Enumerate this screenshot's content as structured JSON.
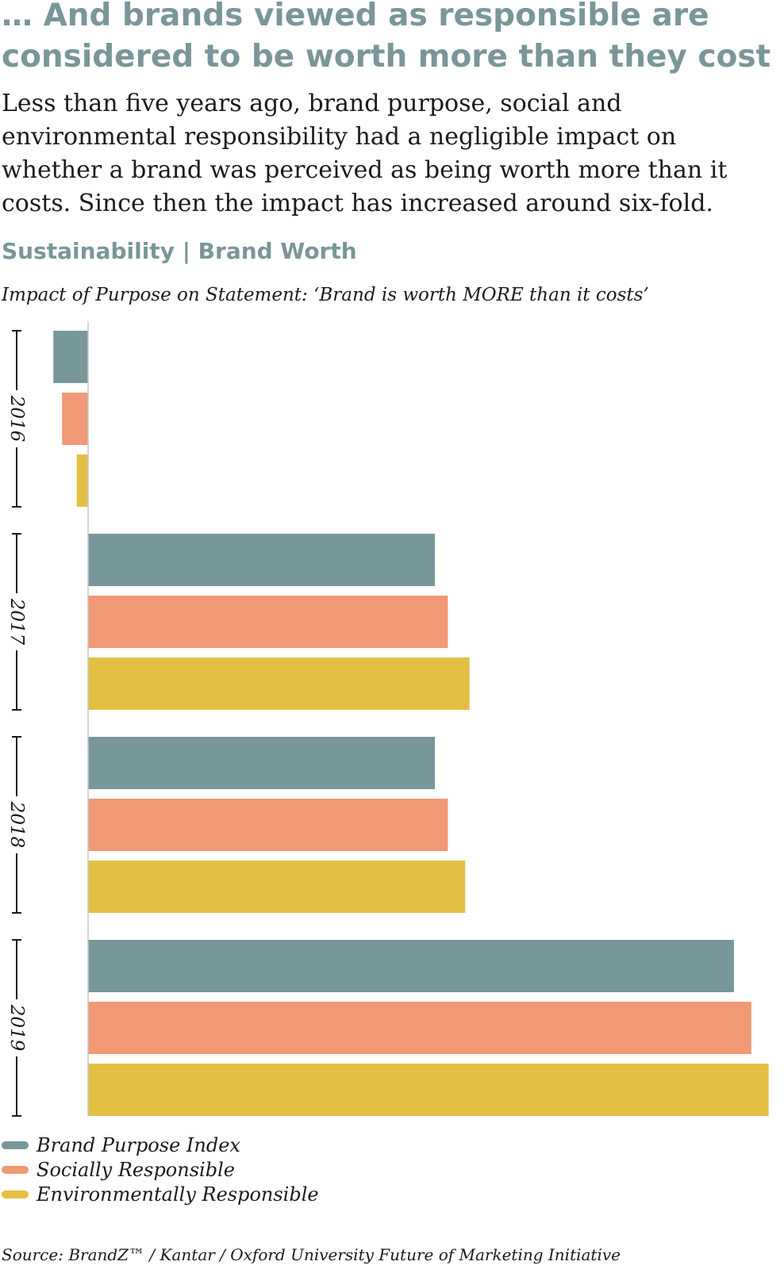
{
  "header": {
    "title_lines": [
      "… And brands viewed as responsible are",
      "considered to be worth more than they cost"
    ],
    "intro_lines": [
      "Less than five years ago, brand purpose, social and",
      "environmental responsibility had a negligible impact on",
      "whether a brand was perceived as being worth more than it",
      "costs. Since then the impact has increased around six-fold."
    ],
    "section_label": "Sustainability | Brand Worth"
  },
  "chart_data": {
    "type": "bar",
    "orientation": "horizontal",
    "title": "Impact of Purpose on Statement: ‘Brand is worth MORE than it costs’",
    "categories": [
      "2016",
      "2017",
      "2018",
      "2019"
    ],
    "series": [
      {
        "name": "Brand Purpose Index",
        "color": "#77979a",
        "values": [
          -4.0,
          40.0,
          40.0,
          74.5
        ]
      },
      {
        "name": "Socially Responsible",
        "color": "#f19875",
        "values": [
          -3.0,
          41.5,
          41.5,
          76.5
        ]
      },
      {
        "name": "Environmentally Responsible",
        "color": "#e3c043",
        "values": [
          -1.3,
          44.0,
          43.5,
          78.5
        ]
      }
    ],
    "xlim": [
      -10,
      80
    ],
    "grid": false,
    "legend_position": "bottom-left"
  },
  "footer": {
    "source": "Source: BrandZ™ / Kantar / Oxford University Future of Marketing Initiative"
  }
}
